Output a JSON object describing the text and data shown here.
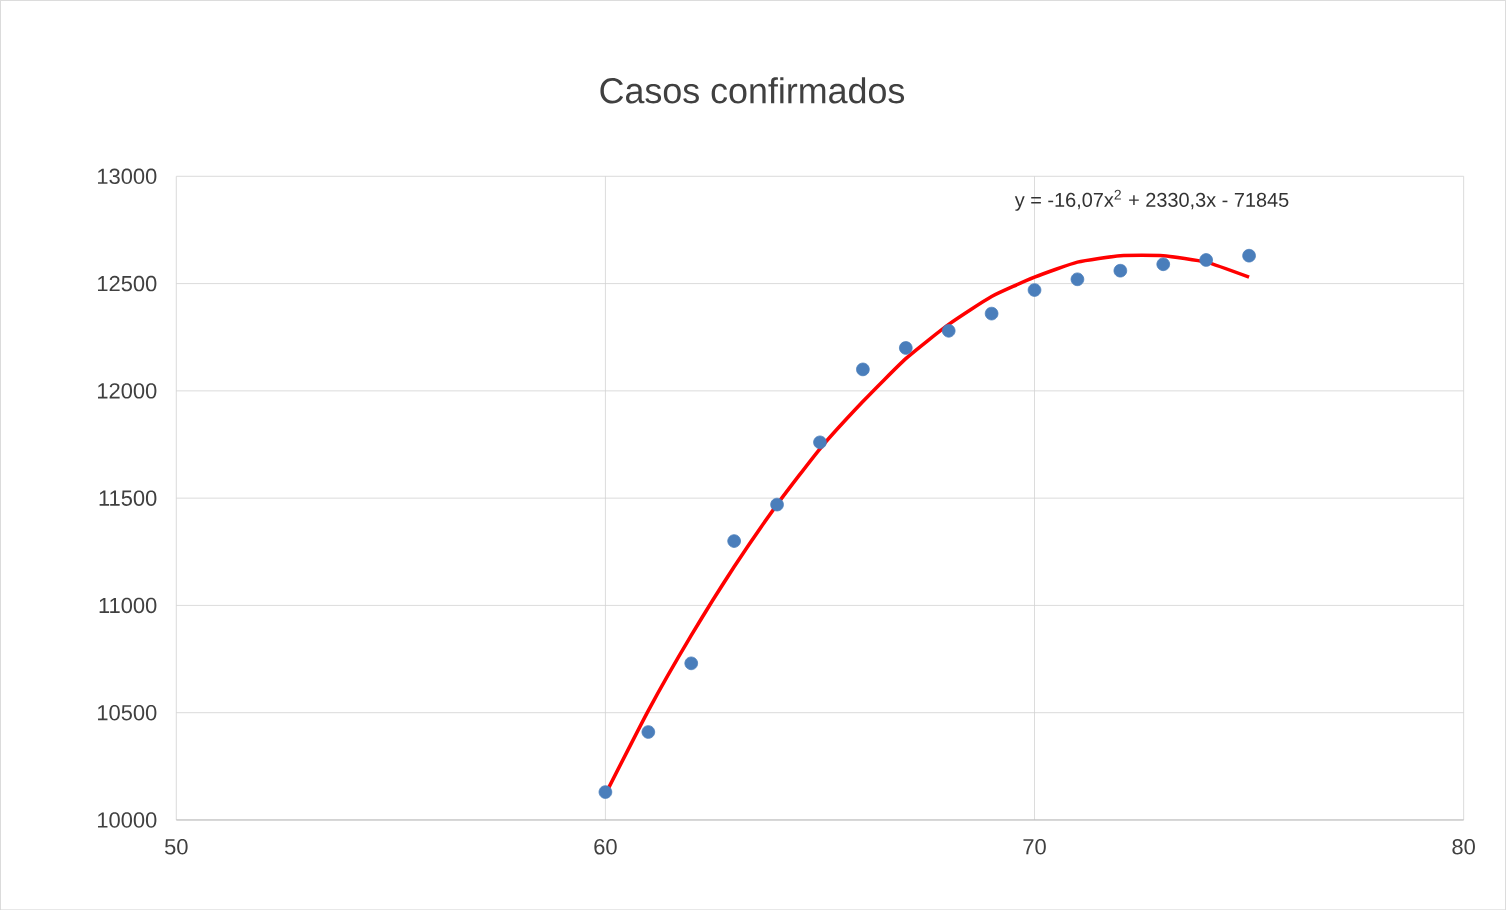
{
  "chart_data": {
    "type": "scatter",
    "title": "Casos confirmados",
    "xlim": [
      50,
      80
    ],
    "xticks": [
      50,
      60,
      70,
      80
    ],
    "ylim": [
      10000,
      13000
    ],
    "yticks": [
      10000,
      10500,
      11000,
      11500,
      12000,
      12500,
      13000
    ],
    "grid": true,
    "annotations": [
      "y = -16,07x$^{2}$ + 2330,3x - 71845"
    ],
    "series": [
      {
        "type": "scatter",
        "color": "#4a7ebb",
        "marker": "circle",
        "x": [
          60,
          61,
          62,
          63,
          64,
          65,
          66,
          67,
          68,
          69,
          70,
          71,
          72,
          73,
          74,
          75
        ],
        "values": [
          10130,
          10410,
          10730,
          11300,
          11470,
          11760,
          12100,
          12200,
          12280,
          12360,
          12470,
          12520,
          12560,
          12590,
          12610,
          12630
        ]
      },
      {
        "type": "line",
        "color": "#ff0000",
        "marker": "none",
        "x": [
          60,
          61,
          62,
          63,
          64,
          65,
          66,
          67,
          68,
          69,
          70,
          71,
          72,
          73,
          74,
          75
        ],
        "values": [
          10120,
          10510,
          10860,
          11180,
          11470,
          11730,
          11950,
          12150,
          12310,
          12440,
          12530,
          12600,
          12630,
          12630,
          12600,
          12530
        ]
      }
    ]
  }
}
